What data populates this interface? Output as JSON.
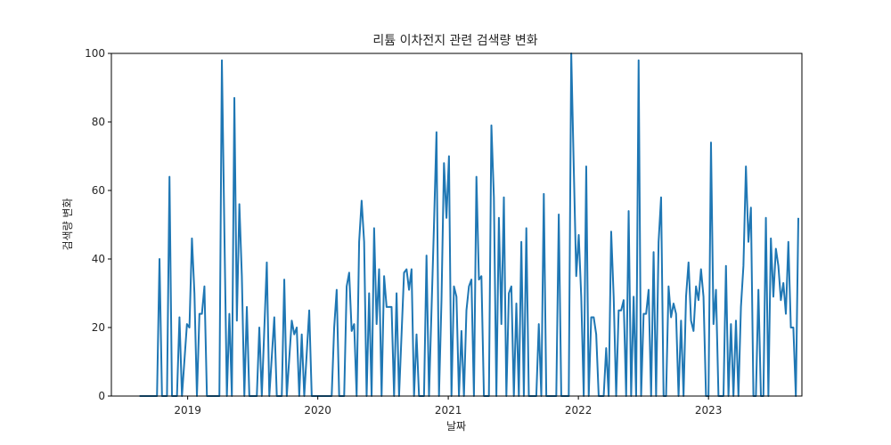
{
  "chart_data": {
    "type": "line",
    "title": "리튬 이차전지 관련 검색량 변화",
    "xlabel": "날짜",
    "ylabel": "검색량 변화",
    "ylim": [
      0,
      100
    ],
    "xlim": [
      "2018-06-01",
      "2023-09-20"
    ],
    "yticks": [
      0,
      20,
      40,
      60,
      80,
      100
    ],
    "xticks": [
      {
        "value": "2019-01-01",
        "label": "2019"
      },
      {
        "value": "2020-01-01",
        "label": "2020"
      },
      {
        "value": "2021-01-01",
        "label": "2021"
      },
      {
        "value": "2022-01-01",
        "label": "2022"
      },
      {
        "value": "2023-01-01",
        "label": "2023"
      }
    ],
    "grid": false,
    "series": [
      {
        "color": "#1f77b4",
        "points": [
          [
            "2018-08-19",
            0
          ],
          [
            "2018-10-07",
            0
          ],
          [
            "2018-10-14",
            40
          ],
          [
            "2018-10-21",
            0
          ],
          [
            "2018-11-04",
            0
          ],
          [
            "2018-11-11",
            64
          ],
          [
            "2018-11-18",
            0
          ],
          [
            "2018-12-02",
            0
          ],
          [
            "2018-12-09",
            23
          ],
          [
            "2018-12-16",
            0
          ],
          [
            "2018-12-30",
            21
          ],
          [
            "2019-01-06",
            20
          ],
          [
            "2019-01-13",
            46
          ],
          [
            "2019-01-20",
            30
          ],
          [
            "2019-01-27",
            0
          ],
          [
            "2019-02-03",
            24
          ],
          [
            "2019-02-10",
            24
          ],
          [
            "2019-02-17",
            32
          ],
          [
            "2019-02-24",
            0
          ],
          [
            "2019-03-31",
            0
          ],
          [
            "2019-04-07",
            98
          ],
          [
            "2019-04-14",
            48
          ],
          [
            "2019-04-21",
            0
          ],
          [
            "2019-04-28",
            24
          ],
          [
            "2019-05-05",
            0
          ],
          [
            "2019-05-12",
            87
          ],
          [
            "2019-05-19",
            22
          ],
          [
            "2019-05-26",
            56
          ],
          [
            "2019-06-02",
            35
          ],
          [
            "2019-06-09",
            0
          ],
          [
            "2019-06-16",
            26
          ],
          [
            "2019-06-23",
            0
          ],
          [
            "2019-07-14",
            0
          ],
          [
            "2019-07-21",
            20
          ],
          [
            "2019-07-28",
            0
          ],
          [
            "2019-08-11",
            39
          ],
          [
            "2019-08-18",
            0
          ],
          [
            "2019-09-01",
            23
          ],
          [
            "2019-09-08",
            0
          ],
          [
            "2019-09-22",
            0
          ],
          [
            "2019-09-29",
            34
          ],
          [
            "2019-10-06",
            0
          ],
          [
            "2019-10-20",
            22
          ],
          [
            "2019-10-27",
            18
          ],
          [
            "2019-11-03",
            20
          ],
          [
            "2019-11-10",
            0
          ],
          [
            "2019-11-17",
            18
          ],
          [
            "2019-11-24",
            0
          ],
          [
            "2019-12-08",
            25
          ],
          [
            "2019-12-15",
            0
          ],
          [
            "2020-02-09",
            0
          ],
          [
            "2020-02-16",
            20
          ],
          [
            "2020-02-23",
            31
          ],
          [
            "2020-03-01",
            0
          ],
          [
            "2020-03-15",
            0
          ],
          [
            "2020-03-22",
            32
          ],
          [
            "2020-03-29",
            36
          ],
          [
            "2020-04-05",
            19
          ],
          [
            "2020-04-12",
            21
          ],
          [
            "2020-04-19",
            0
          ],
          [
            "2020-04-26",
            45
          ],
          [
            "2020-05-03",
            57
          ],
          [
            "2020-05-10",
            45
          ],
          [
            "2020-05-17",
            0
          ],
          [
            "2020-05-24",
            30
          ],
          [
            "2020-05-31",
            0
          ],
          [
            "2020-06-07",
            49
          ],
          [
            "2020-06-14",
            21
          ],
          [
            "2020-06-21",
            37
          ],
          [
            "2020-06-28",
            0
          ],
          [
            "2020-07-05",
            35
          ],
          [
            "2020-07-12",
            26
          ],
          [
            "2020-07-19",
            26
          ],
          [
            "2020-07-26",
            26
          ],
          [
            "2020-08-02",
            0
          ],
          [
            "2020-08-09",
            30
          ],
          [
            "2020-08-16",
            0
          ],
          [
            "2020-08-30",
            36
          ],
          [
            "2020-09-06",
            37
          ],
          [
            "2020-09-13",
            31
          ],
          [
            "2020-09-20",
            37
          ],
          [
            "2020-09-27",
            0
          ],
          [
            "2020-10-04",
            18
          ],
          [
            "2020-10-11",
            0
          ],
          [
            "2020-10-25",
            0
          ],
          [
            "2020-11-01",
            41
          ],
          [
            "2020-11-08",
            0
          ],
          [
            "2020-11-22",
            50
          ],
          [
            "2020-11-29",
            77
          ],
          [
            "2020-12-06",
            0
          ],
          [
            "2020-12-13",
            28
          ],
          [
            "2020-12-20",
            68
          ],
          [
            "2020-12-27",
            52
          ],
          [
            "2021-01-03",
            70
          ],
          [
            "2021-01-10",
            0
          ],
          [
            "2021-01-17",
            32
          ],
          [
            "2021-01-24",
            29
          ],
          [
            "2021-01-31",
            0
          ],
          [
            "2021-02-07",
            19
          ],
          [
            "2021-02-14",
            0
          ],
          [
            "2021-02-21",
            25
          ],
          [
            "2021-02-28",
            32
          ],
          [
            "2021-03-07",
            34
          ],
          [
            "2021-03-14",
            0
          ],
          [
            "2021-03-21",
            64
          ],
          [
            "2021-03-28",
            34
          ],
          [
            "2021-04-04",
            35
          ],
          [
            "2021-04-11",
            0
          ],
          [
            "2021-04-25",
            0
          ],
          [
            "2021-05-02",
            79
          ],
          [
            "2021-05-09",
            58
          ],
          [
            "2021-05-16",
            0
          ],
          [
            "2021-05-23",
            52
          ],
          [
            "2021-05-30",
            21
          ],
          [
            "2021-06-06",
            58
          ],
          [
            "2021-06-13",
            0
          ],
          [
            "2021-06-20",
            30
          ],
          [
            "2021-06-27",
            32
          ],
          [
            "2021-07-04",
            0
          ],
          [
            "2021-07-11",
            27
          ],
          [
            "2021-07-18",
            0
          ],
          [
            "2021-07-25",
            45
          ],
          [
            "2021-08-01",
            0
          ],
          [
            "2021-08-08",
            49
          ],
          [
            "2021-08-15",
            0
          ],
          [
            "2021-09-05",
            0
          ],
          [
            "2021-09-12",
            21
          ],
          [
            "2021-09-19",
            0
          ],
          [
            "2021-09-26",
            59
          ],
          [
            "2021-10-03",
            0
          ],
          [
            "2021-10-31",
            0
          ],
          [
            "2021-11-07",
            53
          ],
          [
            "2021-11-14",
            0
          ],
          [
            "2021-12-05",
            0
          ],
          [
            "2021-12-12",
            100
          ],
          [
            "2021-12-19",
            67
          ],
          [
            "2021-12-26",
            35
          ],
          [
            "2022-01-02",
            47
          ],
          [
            "2022-01-09",
            29
          ],
          [
            "2022-01-16",
            0
          ],
          [
            "2022-01-23",
            67
          ],
          [
            "2022-01-30",
            0
          ],
          [
            "2022-02-06",
            23
          ],
          [
            "2022-02-13",
            23
          ],
          [
            "2022-02-20",
            18
          ],
          [
            "2022-02-27",
            0
          ],
          [
            "2022-03-13",
            0
          ],
          [
            "2022-03-20",
            14
          ],
          [
            "2022-03-27",
            0
          ],
          [
            "2022-04-03",
            48
          ],
          [
            "2022-04-10",
            29
          ],
          [
            "2022-04-17",
            0
          ],
          [
            "2022-04-24",
            25
          ],
          [
            "2022-05-01",
            25
          ],
          [
            "2022-05-08",
            28
          ],
          [
            "2022-05-15",
            0
          ],
          [
            "2022-05-22",
            54
          ],
          [
            "2022-05-29",
            0
          ],
          [
            "2022-06-05",
            29
          ],
          [
            "2022-06-12",
            0
          ],
          [
            "2022-06-19",
            98
          ],
          [
            "2022-06-26",
            0
          ],
          [
            "2022-07-03",
            24
          ],
          [
            "2022-07-10",
            24
          ],
          [
            "2022-07-17",
            31
          ],
          [
            "2022-07-24",
            0
          ],
          [
            "2022-07-31",
            42
          ],
          [
            "2022-08-07",
            0
          ],
          [
            "2022-08-14",
            45
          ],
          [
            "2022-08-21",
            58
          ],
          [
            "2022-08-28",
            0
          ],
          [
            "2022-09-04",
            0
          ],
          [
            "2022-09-11",
            32
          ],
          [
            "2022-09-18",
            23
          ],
          [
            "2022-09-25",
            27
          ],
          [
            "2022-10-02",
            24
          ],
          [
            "2022-10-09",
            0
          ],
          [
            "2022-10-16",
            22
          ],
          [
            "2022-10-23",
            0
          ],
          [
            "2022-10-30",
            29
          ],
          [
            "2022-11-06",
            39
          ],
          [
            "2022-11-13",
            22
          ],
          [
            "2022-11-20",
            19
          ],
          [
            "2022-11-27",
            32
          ],
          [
            "2022-12-04",
            28
          ],
          [
            "2022-12-11",
            37
          ],
          [
            "2022-12-18",
            29
          ],
          [
            "2022-12-25",
            0
          ],
          [
            "2023-01-01",
            0
          ],
          [
            "2023-01-08",
            74
          ],
          [
            "2023-01-15",
            21
          ],
          [
            "2023-01-22",
            31
          ],
          [
            "2023-01-29",
            0
          ],
          [
            "2023-02-05",
            0
          ],
          [
            "2023-02-12",
            0
          ],
          [
            "2023-02-19",
            38
          ],
          [
            "2023-02-26",
            0
          ],
          [
            "2023-03-05",
            21
          ],
          [
            "2023-03-12",
            0
          ],
          [
            "2023-03-19",
            22
          ],
          [
            "2023-03-26",
            0
          ],
          [
            "2023-04-02",
            26
          ],
          [
            "2023-04-09",
            38
          ],
          [
            "2023-04-16",
            67
          ],
          [
            "2023-04-23",
            45
          ],
          [
            "2023-04-30",
            55
          ],
          [
            "2023-05-07",
            0
          ],
          [
            "2023-05-14",
            0
          ],
          [
            "2023-05-21",
            31
          ],
          [
            "2023-05-28",
            0
          ],
          [
            "2023-06-04",
            0
          ],
          [
            "2023-06-11",
            52
          ],
          [
            "2023-06-18",
            0
          ],
          [
            "2023-06-25",
            46
          ],
          [
            "2023-07-02",
            29
          ],
          [
            "2023-07-09",
            43
          ],
          [
            "2023-07-16",
            38
          ],
          [
            "2023-07-23",
            28
          ],
          [
            "2023-07-30",
            33
          ],
          [
            "2023-08-06",
            24
          ],
          [
            "2023-08-13",
            45
          ],
          [
            "2023-08-20",
            20
          ],
          [
            "2023-08-27",
            20
          ],
          [
            "2023-09-03",
            0
          ],
          [
            "2023-09-10",
            52
          ]
        ]
      }
    ]
  }
}
